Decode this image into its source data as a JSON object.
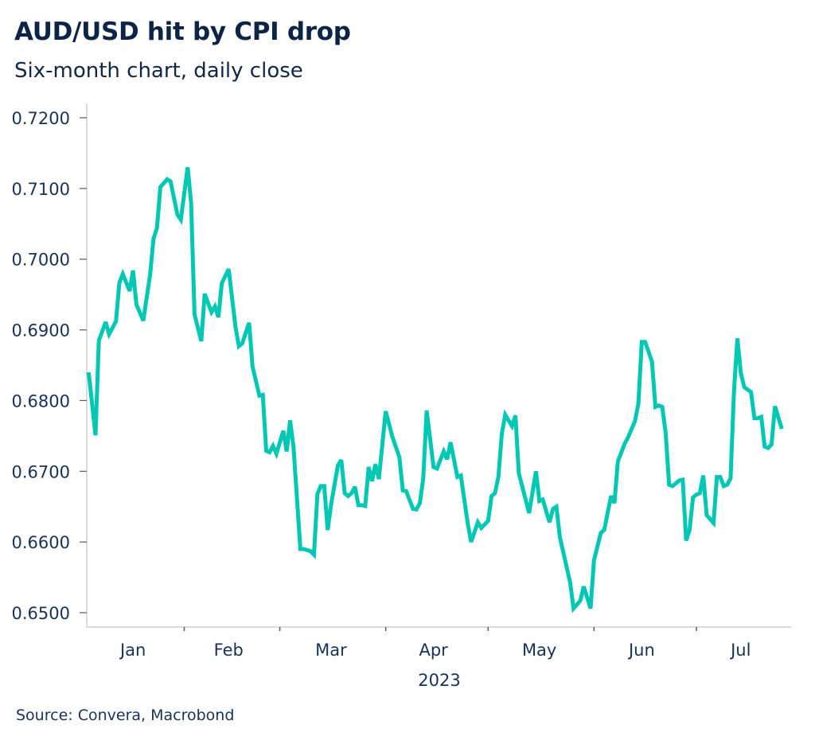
{
  "header": {
    "title": "AUD/USD hit by CPI drop",
    "subtitle": "Six-month chart, daily close"
  },
  "footer": {
    "source": "Source: Convera, Macrobond"
  },
  "colors": {
    "line": "#00c8b4",
    "text": "#15335a",
    "title": "#0b2447",
    "axis": "#cfcfcf",
    "tick": "#5a5a5a"
  },
  "chart_data": {
    "type": "line",
    "title": "AUD/USD hit by CPI drop",
    "subtitle": "Six-month chart, daily close",
    "xlabel": "2023",
    "ylabel": "",
    "source": "Source: Convera, Macrobond",
    "grid": false,
    "legend": "none",
    "xlim": [
      "2023-01-03",
      "2023-07-28"
    ],
    "ylim": [
      0.6485,
      0.722
    ],
    "y_ticks": [
      0.72,
      0.71,
      0.7,
      0.69,
      0.68,
      0.67,
      0.66,
      0.65
    ],
    "y_tick_labels": [
      "0.7200",
      "0.7100",
      "0.7000",
      "0.6900",
      "0.6800",
      "0.6700",
      "0.6600",
      "0.6500"
    ],
    "x_month_boundaries": [
      "2023-02-01",
      "2023-03-01",
      "2023-04-01",
      "2023-05-01",
      "2023-06-01",
      "2023-07-01"
    ],
    "x_tick_labels": [
      {
        "label": "Jan",
        "center": "2023-01-17"
      },
      {
        "label": "Feb",
        "center": "2023-02-14"
      },
      {
        "label": "Mar",
        "center": "2023-03-16"
      },
      {
        "label": "Apr",
        "center": "2023-04-15"
      },
      {
        "label": "May",
        "center": "2023-05-16"
      },
      {
        "label": "Jun",
        "center": "2023-06-15"
      },
      {
        "label": "Jul",
        "center": "2023-07-14"
      }
    ],
    "x_group_label": "2023",
    "series": [
      {
        "name": "AUD/USD",
        "x": [
          "2023-01-04",
          "2023-01-06",
          "2023-01-07",
          "2023-01-09",
          "2023-01-10",
          "2023-01-12",
          "2023-01-13",
          "2023-01-14",
          "2023-01-16",
          "2023-01-17",
          "2023-01-18",
          "2023-01-20",
          "2023-01-22",
          "2023-01-23",
          "2023-01-24",
          "2023-01-25",
          "2023-01-27",
          "2023-01-28",
          "2023-01-30",
          "2023-01-31",
          "2023-02-02",
          "2023-02-03",
          "2023-02-04",
          "2023-02-06",
          "2023-02-07",
          "2023-02-09",
          "2023-02-10",
          "2023-02-11",
          "2023-02-12",
          "2023-02-14",
          "2023-02-16",
          "2023-02-17",
          "2023-02-18",
          "2023-02-20",
          "2023-02-21",
          "2023-02-23",
          "2023-02-24",
          "2023-02-25",
          "2023-02-26",
          "2023-02-27",
          "2023-02-28",
          "2023-03-02",
          "2023-03-03",
          "2023-03-04",
          "2023-03-05",
          "2023-03-07",
          "2023-03-08",
          "2023-03-10",
          "2023-03-11",
          "2023-03-12",
          "2023-03-13",
          "2023-03-14",
          "2023-03-15",
          "2023-03-16",
          "2023-03-18",
          "2023-03-19",
          "2023-03-20",
          "2023-03-21",
          "2023-03-22",
          "2023-03-23",
          "2023-03-24",
          "2023-03-25",
          "2023-03-26",
          "2023-03-27",
          "2023-03-28",
          "2023-03-29",
          "2023-03-30",
          "2023-04-01",
          "2023-04-03",
          "2023-04-05",
          "2023-04-06",
          "2023-04-07",
          "2023-04-09",
          "2023-04-10",
          "2023-04-11",
          "2023-04-12",
          "2023-04-13",
          "2023-04-15",
          "2023-04-16",
          "2023-04-18",
          "2023-04-19",
          "2023-04-20",
          "2023-04-22",
          "2023-04-23",
          "2023-04-25",
          "2023-04-26",
          "2023-04-28",
          "2023-04-29",
          "2023-05-01",
          "2023-05-02",
          "2023-05-03",
          "2023-05-04",
          "2023-05-05",
          "2023-05-06",
          "2023-05-08",
          "2023-05-09",
          "2023-05-10",
          "2023-05-13",
          "2023-05-15",
          "2023-05-16",
          "2023-05-17",
          "2023-05-19",
          "2023-05-20",
          "2023-05-21",
          "2023-05-22",
          "2023-05-25",
          "2023-05-26",
          "2023-05-28",
          "2023-05-29",
          "2023-05-31",
          "2023-06-01",
          "2023-06-03",
          "2023-06-04",
          "2023-06-06",
          "2023-06-07",
          "2023-06-08",
          "2023-06-10",
          "2023-06-11",
          "2023-06-13",
          "2023-06-14",
          "2023-06-15",
          "2023-06-16",
          "2023-06-18",
          "2023-06-19",
          "2023-06-20",
          "2023-06-21",
          "2023-06-22",
          "2023-06-23",
          "2023-06-24",
          "2023-06-26",
          "2023-06-27",
          "2023-06-28",
          "2023-06-29",
          "2023-06-30",
          "2023-07-01",
          "2023-07-02",
          "2023-07-03",
          "2023-07-04",
          "2023-07-06",
          "2023-07-07",
          "2023-07-08",
          "2023-07-09",
          "2023-07-10",
          "2023-07-11",
          "2023-07-12",
          "2023-07-13",
          "2023-07-14",
          "2023-07-15",
          "2023-07-17",
          "2023-07-18",
          "2023-07-19",
          "2023-07-20",
          "2023-07-21",
          "2023-07-22",
          "2023-07-23",
          "2023-07-24",
          "2023-07-26"
        ],
        "values": [
          0.684,
          0.6751,
          0.6885,
          0.6911,
          0.6894,
          0.6912,
          0.6967,
          0.6979,
          0.6955,
          0.6984,
          0.6936,
          0.6913,
          0.6978,
          0.7029,
          0.7044,
          0.7102,
          0.7113,
          0.711,
          0.7063,
          0.7056,
          0.713,
          0.708,
          0.6922,
          0.6884,
          0.6951,
          0.6925,
          0.6933,
          0.6918,
          0.6966,
          0.6986,
          0.6905,
          0.6877,
          0.6881,
          0.691,
          0.6848,
          0.6807,
          0.6808,
          0.6729,
          0.6727,
          0.6736,
          0.6725,
          0.6757,
          0.6728,
          0.6772,
          0.6734,
          0.659,
          0.659,
          0.6587,
          0.6582,
          0.6668,
          0.6679,
          0.6679,
          0.6617,
          0.6653,
          0.6708,
          0.6716,
          0.6669,
          0.6665,
          0.6669,
          0.6678,
          0.6652,
          0.6652,
          0.6651,
          0.6706,
          0.6686,
          0.671,
          0.6689,
          0.6785,
          0.6748,
          0.672,
          0.6673,
          0.6672,
          0.6647,
          0.6646,
          0.6655,
          0.669,
          0.6786,
          0.6706,
          0.6704,
          0.6728,
          0.6717,
          0.6741,
          0.6692,
          0.6694,
          0.6627,
          0.66,
          0.6628,
          0.662,
          0.663,
          0.6665,
          0.6669,
          0.6692,
          0.6753,
          0.678,
          0.6764,
          0.6779,
          0.6697,
          0.6641,
          0.67,
          0.6658,
          0.666,
          0.6628,
          0.6647,
          0.665,
          0.6607,
          0.6543,
          0.6506,
          0.6517,
          0.6537,
          0.6506,
          0.6574,
          0.6613,
          0.6617,
          0.6665,
          0.6655,
          0.6714,
          0.6739,
          0.6748,
          0.6771,
          0.6796,
          0.6883,
          0.6883,
          0.6855,
          0.6791,
          0.6793,
          0.6791,
          0.6754,
          0.6681,
          0.6679,
          0.6687,
          0.6688,
          0.6602,
          0.6617,
          0.6663,
          0.6667,
          0.6669,
          0.6694,
          0.6638,
          0.6627,
          0.6692,
          0.6692,
          0.6679,
          0.6681,
          0.669,
          0.6813,
          0.6888,
          0.6839,
          0.6819,
          0.6812,
          0.6775,
          0.6775,
          0.6777,
          0.6735,
          0.6733,
          0.6738,
          0.6792,
          0.676
        ]
      }
    ]
  }
}
